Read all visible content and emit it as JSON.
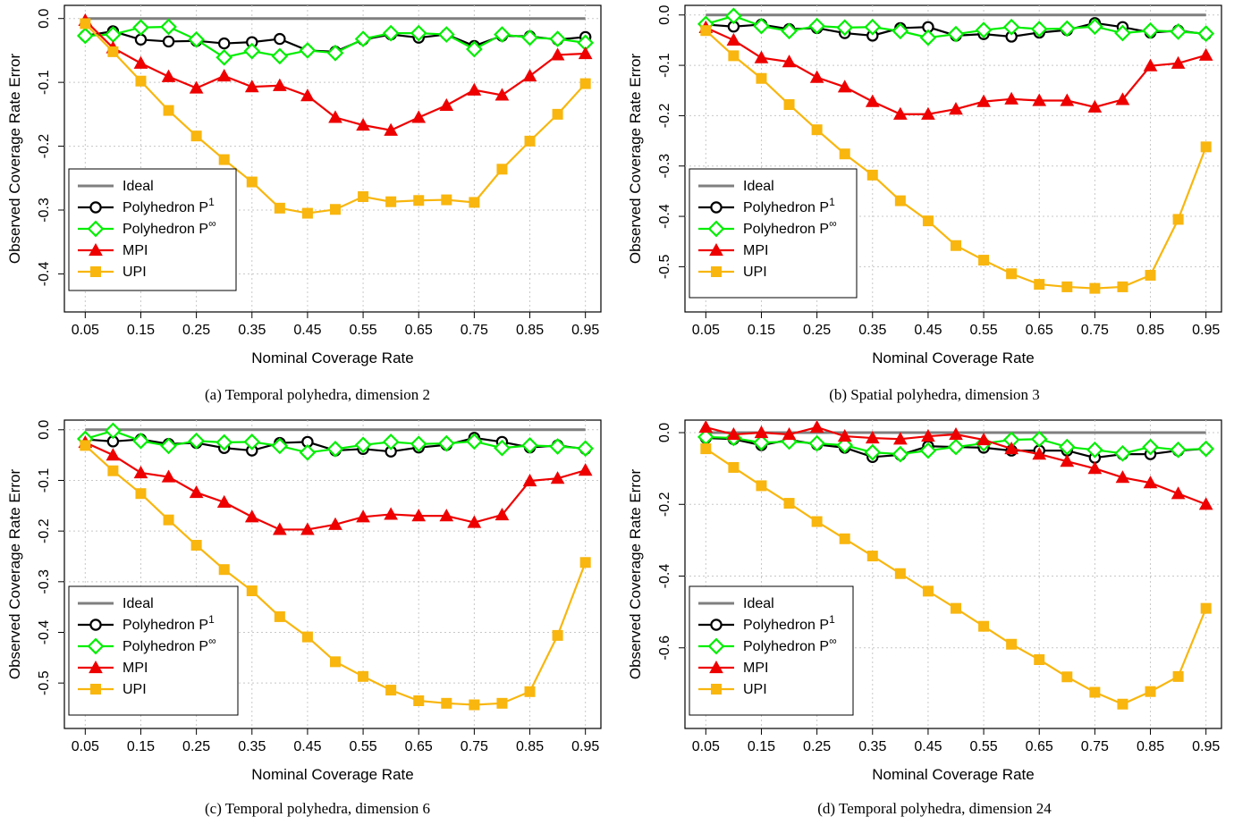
{
  "figure": {
    "legend_labels": [
      "Ideal",
      "Polyhedron P",
      "Polyhedron P",
      "MPI",
      "UPI"
    ],
    "legend_superscripts": [
      "",
      "1",
      "∞",
      "",
      ""
    ],
    "colors": {
      "ideal": "#7f7f7f",
      "p1": "#000000",
      "pinf": "#00ee00",
      "mpi": "#ee0000",
      "upi": "#f8b60e"
    }
  },
  "chart_data": [
    {
      "type": "line",
      "caption": "(a) Temporal polyhedra, dimension 2",
      "xlabel": "Nominal Coverage Rate",
      "ylabel": "Observed Coverage Rate Error",
      "x": [
        0.05,
        0.1,
        0.15,
        0.2,
        0.25,
        0.3,
        0.35,
        0.4,
        0.45,
        0.5,
        0.55,
        0.6,
        0.65,
        0.7,
        0.75,
        0.8,
        0.85,
        0.9,
        0.95
      ],
      "xticks": [
        "0.05",
        "0.15",
        "0.25",
        "0.35",
        "0.45",
        "0.55",
        "0.65",
        "0.75",
        "0.85",
        "0.95"
      ],
      "yticks": [
        0,
        -0.1,
        -0.2,
        -0.3,
        -0.4
      ],
      "ytick_labels": [
        "0.0",
        "-0.1",
        "-0.2",
        "-0.3",
        "-0.4"
      ],
      "ylim": [
        -0.44,
        0.015
      ],
      "grid": true,
      "legend_position": "bottom-left",
      "series": [
        {
          "name": "Ideal",
          "values": [
            0,
            0,
            0,
            0,
            0,
            0,
            0,
            0,
            0,
            0,
            0,
            0,
            0,
            0,
            0,
            0,
            0,
            0,
            0
          ]
        },
        {
          "name": "Polyhedron P1",
          "values": [
            -0.027,
            -0.02,
            -0.033,
            -0.036,
            -0.035,
            -0.039,
            -0.037,
            -0.032,
            -0.05,
            -0.052,
            -0.033,
            -0.025,
            -0.03,
            -0.025,
            -0.043,
            -0.027,
            -0.028,
            -0.033,
            -0.029
          ]
        },
        {
          "name": "Polyhedron P∞",
          "values": [
            -0.027,
            -0.025,
            -0.014,
            -0.013,
            -0.033,
            -0.061,
            -0.051,
            -0.059,
            -0.05,
            -0.054,
            -0.032,
            -0.023,
            -0.023,
            -0.025,
            -0.048,
            -0.025,
            -0.03,
            -0.032,
            -0.038
          ]
        },
        {
          "name": "MPI",
          "values": [
            -0.003,
            -0.046,
            -0.07,
            -0.091,
            -0.109,
            -0.09,
            -0.107,
            -0.105,
            -0.121,
            -0.155,
            -0.167,
            -0.175,
            -0.155,
            -0.136,
            -0.112,
            -0.12,
            -0.09,
            -0.057,
            -0.055
          ]
        },
        {
          "name": "UPI",
          "values": [
            -0.008,
            -0.052,
            -0.098,
            -0.144,
            -0.184,
            -0.221,
            -0.256,
            -0.297,
            -0.305,
            -0.299,
            -0.279,
            -0.287,
            -0.285,
            -0.284,
            -0.288,
            -0.236,
            -0.192,
            -0.15,
            -0.102
          ]
        }
      ]
    },
    {
      "type": "line",
      "caption": "(b) Spatial polyhedra, dimension 3",
      "xlabel": "Nominal Coverage Rate",
      "ylabel": "Observed Coverage Rate Error",
      "x": [
        0.05,
        0.1,
        0.15,
        0.2,
        0.25,
        0.3,
        0.35,
        0.4,
        0.45,
        0.5,
        0.55,
        0.6,
        0.65,
        0.7,
        0.75,
        0.8,
        0.85,
        0.9,
        0.95
      ],
      "xticks": [
        "0.05",
        "0.15",
        "0.25",
        "0.35",
        "0.45",
        "0.55",
        "0.65",
        "0.75",
        "0.85",
        "0.95"
      ],
      "yticks": [
        0,
        -0.1,
        -0.2,
        -0.3,
        -0.4,
        -0.5
      ],
      "ytick_labels": [
        "0.0",
        "-0.1",
        "-0.2",
        "-0.3",
        "-0.4",
        "-0.5"
      ],
      "ylim": [
        -0.565,
        0.012
      ],
      "grid": true,
      "legend_position": "bottom-left",
      "series": [
        {
          "name": "Ideal",
          "values": [
            0,
            0,
            0,
            0,
            0,
            0,
            0,
            0,
            0,
            0,
            0,
            0,
            0,
            0,
            0,
            0,
            0,
            0,
            0
          ]
        },
        {
          "name": "Polyhedron P1",
          "values": [
            -0.019,
            -0.023,
            -0.019,
            -0.028,
            -0.026,
            -0.036,
            -0.041,
            -0.026,
            -0.024,
            -0.041,
            -0.038,
            -0.043,
            -0.035,
            -0.03,
            -0.016,
            -0.024,
            -0.035,
            -0.031,
            -0.038
          ]
        },
        {
          "name": "Polyhedron P∞",
          "values": [
            -0.018,
            -0.002,
            -0.022,
            -0.032,
            -0.022,
            -0.025,
            -0.024,
            -0.032,
            -0.045,
            -0.038,
            -0.03,
            -0.024,
            -0.028,
            -0.027,
            -0.023,
            -0.036,
            -0.031,
            -0.033,
            -0.037
          ]
        },
        {
          "name": "MPI",
          "values": [
            -0.025,
            -0.05,
            -0.085,
            -0.093,
            -0.124,
            -0.143,
            -0.172,
            -0.197,
            -0.197,
            -0.187,
            -0.172,
            -0.167,
            -0.17,
            -0.17,
            -0.183,
            -0.168,
            -0.101,
            -0.096,
            -0.08
          ]
        },
        {
          "name": "UPI",
          "values": [
            -0.031,
            -0.081,
            -0.126,
            -0.178,
            -0.228,
            -0.276,
            -0.318,
            -0.369,
            -0.409,
            -0.458,
            -0.487,
            -0.514,
            -0.535,
            -0.54,
            -0.543,
            -0.54,
            -0.517,
            -0.406,
            -0.262
          ]
        }
      ]
    },
    {
      "type": "line",
      "caption": "(c) Temporal polyhedra, dimension 6",
      "xlabel": "Nominal Coverage Rate",
      "ylabel": "Observed Coverage Rate Error",
      "x": [
        0.05,
        0.1,
        0.15,
        0.2,
        0.25,
        0.3,
        0.35,
        0.4,
        0.45,
        0.5,
        0.55,
        0.6,
        0.65,
        0.7,
        0.75,
        0.8,
        0.85,
        0.9,
        0.95
      ],
      "xticks": [
        "0.05",
        "0.15",
        "0.25",
        "0.35",
        "0.45",
        "0.55",
        "0.65",
        "0.75",
        "0.85",
        "0.95"
      ],
      "yticks": [
        0,
        -0.1,
        -0.2,
        -0.3,
        -0.4,
        -0.5
      ],
      "ytick_labels": [
        "0.0",
        "-0.1",
        "-0.2",
        "-0.3",
        "-0.4",
        "-0.5"
      ],
      "ylim": [
        -0.565,
        0.012
      ],
      "grid": true,
      "legend_position": "bottom-left",
      "series": [
        {
          "name": "Ideal",
          "values": [
            0,
            0,
            0,
            0,
            0,
            0,
            0,
            0,
            0,
            0,
            0,
            0,
            0,
            0,
            0,
            0,
            0,
            0,
            0
          ]
        },
        {
          "name": "Polyhedron P1",
          "values": [
            -0.019,
            -0.023,
            -0.019,
            -0.028,
            -0.026,
            -0.036,
            -0.041,
            -0.026,
            -0.024,
            -0.041,
            -0.038,
            -0.043,
            -0.035,
            -0.03,
            -0.016,
            -0.024,
            -0.035,
            -0.031,
            -0.038
          ]
        },
        {
          "name": "Polyhedron P∞",
          "values": [
            -0.018,
            -0.002,
            -0.022,
            -0.032,
            -0.022,
            -0.025,
            -0.024,
            -0.032,
            -0.045,
            -0.038,
            -0.03,
            -0.024,
            -0.028,
            -0.027,
            -0.023,
            -0.036,
            -0.031,
            -0.033,
            -0.037
          ]
        },
        {
          "name": "MPI",
          "values": [
            -0.025,
            -0.05,
            -0.085,
            -0.093,
            -0.124,
            -0.143,
            -0.172,
            -0.197,
            -0.197,
            -0.187,
            -0.172,
            -0.167,
            -0.17,
            -0.17,
            -0.183,
            -0.168,
            -0.101,
            -0.096,
            -0.08
          ]
        },
        {
          "name": "UPI",
          "values": [
            -0.031,
            -0.081,
            -0.126,
            -0.178,
            -0.228,
            -0.276,
            -0.318,
            -0.369,
            -0.409,
            -0.458,
            -0.487,
            -0.514,
            -0.535,
            -0.54,
            -0.543,
            -0.54,
            -0.517,
            -0.406,
            -0.262
          ]
        }
      ]
    },
    {
      "type": "line",
      "caption": "(d) Temporal polyhedra, dimension 24",
      "xlabel": "Nominal Coverage Rate",
      "ylabel": "Observed Coverage Rate Error",
      "x": [
        0.05,
        0.1,
        0.15,
        0.2,
        0.25,
        0.3,
        0.35,
        0.4,
        0.45,
        0.5,
        0.55,
        0.6,
        0.65,
        0.7,
        0.75,
        0.8,
        0.85,
        0.9,
        0.95
      ],
      "xticks": [
        "0.05",
        "0.15",
        "0.25",
        "0.35",
        "0.45",
        "0.55",
        "0.65",
        "0.75",
        "0.85",
        "0.95"
      ],
      "yticks": [
        0,
        -0.2,
        -0.4,
        -0.6
      ],
      "ytick_labels": [
        "0.0",
        "-0.2",
        "-0.4",
        "-0.6"
      ],
      "ylim": [
        -0.79,
        0.025
      ],
      "grid": true,
      "legend_position": "bottom-left",
      "series": [
        {
          "name": "Ideal",
          "values": [
            0,
            0,
            0,
            0,
            0,
            0,
            0,
            0,
            0,
            0,
            0,
            0,
            0,
            0,
            0,
            0,
            0,
            0,
            0
          ]
        },
        {
          "name": "Polyhedron P1",
          "values": [
            -0.015,
            -0.018,
            -0.035,
            -0.02,
            -0.033,
            -0.042,
            -0.068,
            -0.062,
            -0.038,
            -0.04,
            -0.042,
            -0.05,
            -0.05,
            -0.05,
            -0.07,
            -0.06,
            -0.06,
            -0.05,
            -0.045
          ]
        },
        {
          "name": "Polyhedron P∞",
          "values": [
            -0.012,
            -0.015,
            -0.028,
            -0.025,
            -0.03,
            -0.035,
            -0.055,
            -0.06,
            -0.05,
            -0.04,
            -0.03,
            -0.02,
            -0.018,
            -0.04,
            -0.048,
            -0.058,
            -0.04,
            -0.048,
            -0.045
          ]
        },
        {
          "name": "MPI",
          "values": [
            0.015,
            -0.005,
            0.0,
            -0.005,
            0.015,
            -0.01,
            -0.015,
            -0.018,
            -0.01,
            -0.005,
            -0.02,
            -0.045,
            -0.06,
            -0.08,
            -0.1,
            -0.125,
            -0.14,
            -0.17,
            -0.2
          ]
        },
        {
          "name": "UPI",
          "values": [
            -0.045,
            -0.097,
            -0.148,
            -0.197,
            -0.248,
            -0.296,
            -0.344,
            -0.393,
            -0.442,
            -0.49,
            -0.54,
            -0.59,
            -0.633,
            -0.681,
            -0.724,
            -0.757,
            -0.722,
            -0.68,
            -0.49
          ]
        }
      ]
    }
  ]
}
